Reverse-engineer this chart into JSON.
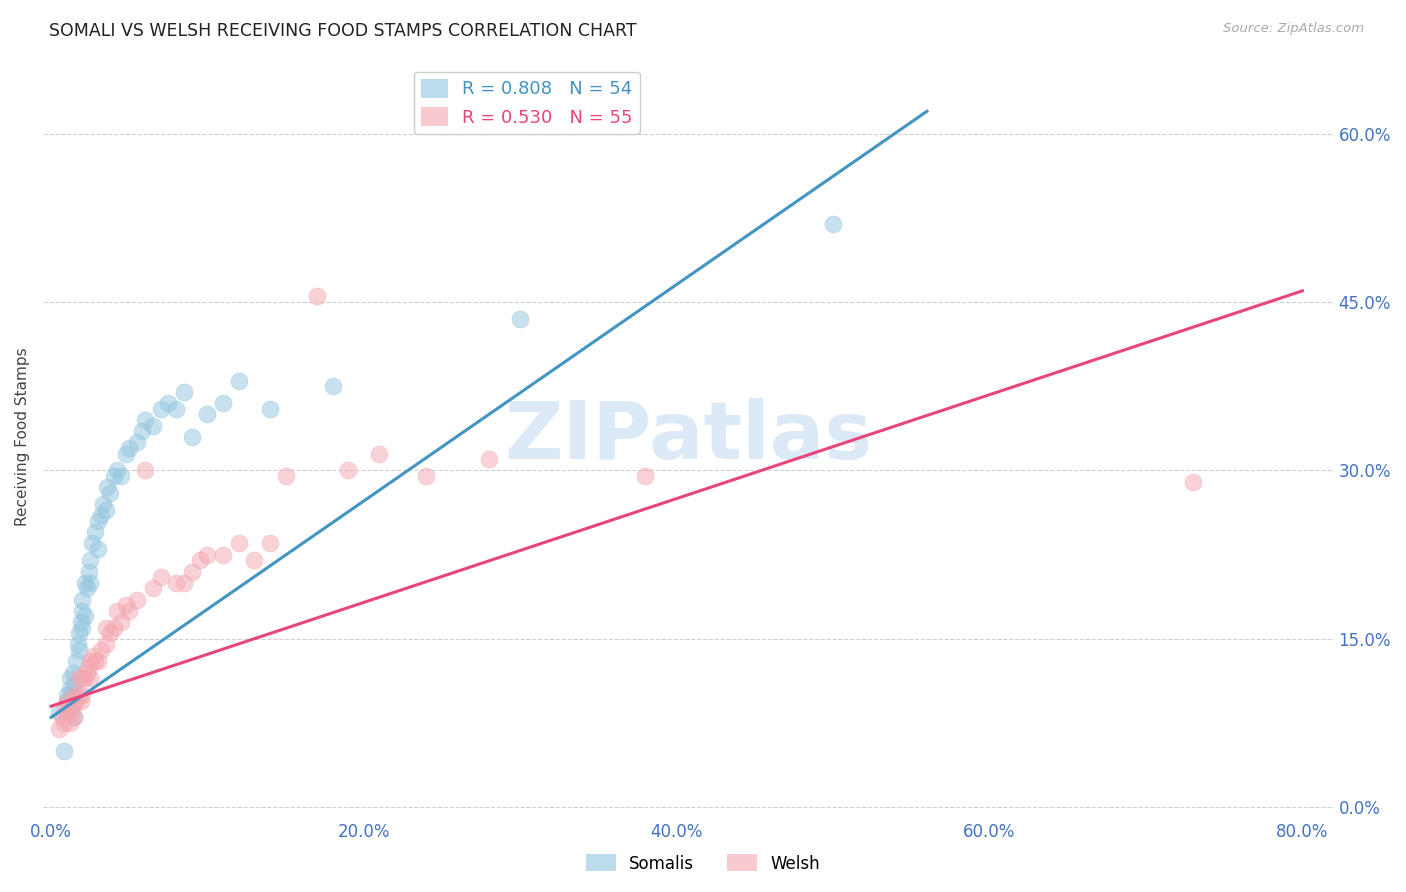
{
  "title": "SOMALI VS WELSH RECEIVING FOOD STAMPS CORRELATION CHART",
  "source": "Source: ZipAtlas.com",
  "ylabel": "Receiving Food Stamps",
  "xlabel_vals": [
    0.0,
    0.2,
    0.4,
    0.6,
    0.8
  ],
  "ylabel_vals": [
    0.0,
    0.15,
    0.3,
    0.45,
    0.6
  ],
  "xlim": [
    -0.005,
    0.82
  ],
  "ylim": [
    -0.01,
    0.67
  ],
  "somali_R": 0.808,
  "somali_N": 54,
  "welsh_R": 0.53,
  "welsh_N": 55,
  "somali_color": "#92c5de",
  "welsh_color": "#f4a6b0",
  "somali_line_color": "#4393c3",
  "welsh_line_color": "#e8457a",
  "title_color": "#222222",
  "tick_color": "#4472c4",
  "grid_color": "#d0d0d0",
  "watermark_text": "ZIPatlas",
  "watermark_color": "#dce9f7",
  "somali_line_x0": 0.0,
  "somali_line_y0": 0.08,
  "somali_line_x1": 0.56,
  "somali_line_y1": 0.62,
  "welsh_line_x0": 0.0,
  "welsh_line_y0": 0.09,
  "welsh_line_x1": 0.8,
  "welsh_line_y1": 0.46,
  "somali_x": [
    0.005,
    0.008,
    0.01,
    0.01,
    0.012,
    0.012,
    0.013,
    0.014,
    0.015,
    0.015,
    0.016,
    0.017,
    0.018,
    0.018,
    0.019,
    0.02,
    0.02,
    0.02,
    0.022,
    0.022,
    0.023,
    0.024,
    0.025,
    0.025,
    0.026,
    0.028,
    0.03,
    0.03,
    0.032,
    0.033,
    0.035,
    0.036,
    0.038,
    0.04,
    0.042,
    0.045,
    0.048,
    0.05,
    0.055,
    0.058,
    0.06,
    0.065,
    0.07,
    0.075,
    0.08,
    0.085,
    0.09,
    0.1,
    0.11,
    0.12,
    0.14,
    0.18,
    0.3,
    0.5
  ],
  "somali_y": [
    0.085,
    0.05,
    0.095,
    0.1,
    0.105,
    0.115,
    0.1,
    0.12,
    0.08,
    0.11,
    0.13,
    0.145,
    0.14,
    0.155,
    0.165,
    0.16,
    0.175,
    0.185,
    0.17,
    0.2,
    0.195,
    0.21,
    0.2,
    0.22,
    0.235,
    0.245,
    0.23,
    0.255,
    0.26,
    0.27,
    0.265,
    0.285,
    0.28,
    0.295,
    0.3,
    0.295,
    0.315,
    0.32,
    0.325,
    0.335,
    0.345,
    0.34,
    0.355,
    0.36,
    0.355,
    0.37,
    0.33,
    0.35,
    0.36,
    0.38,
    0.355,
    0.375,
    0.435,
    0.52
  ],
  "welsh_x": [
    0.005,
    0.007,
    0.008,
    0.009,
    0.01,
    0.011,
    0.012,
    0.013,
    0.014,
    0.015,
    0.015,
    0.016,
    0.018,
    0.018,
    0.019,
    0.02,
    0.02,
    0.022,
    0.023,
    0.024,
    0.025,
    0.025,
    0.027,
    0.028,
    0.03,
    0.032,
    0.035,
    0.035,
    0.038,
    0.04,
    0.042,
    0.045,
    0.048,
    0.05,
    0.055,
    0.06,
    0.065,
    0.07,
    0.08,
    0.085,
    0.09,
    0.095,
    0.1,
    0.11,
    0.12,
    0.13,
    0.14,
    0.15,
    0.17,
    0.19,
    0.21,
    0.24,
    0.28,
    0.38,
    0.73
  ],
  "welsh_y": [
    0.07,
    0.08,
    0.075,
    0.09,
    0.085,
    0.095,
    0.075,
    0.085,
    0.09,
    0.08,
    0.1,
    0.095,
    0.1,
    0.115,
    0.095,
    0.1,
    0.115,
    0.115,
    0.12,
    0.125,
    0.115,
    0.13,
    0.135,
    0.13,
    0.13,
    0.14,
    0.145,
    0.16,
    0.155,
    0.16,
    0.175,
    0.165,
    0.18,
    0.175,
    0.185,
    0.3,
    0.195,
    0.205,
    0.2,
    0.2,
    0.21,
    0.22,
    0.225,
    0.225,
    0.235,
    0.22,
    0.235,
    0.295,
    0.455,
    0.3,
    0.315,
    0.295,
    0.31,
    0.295,
    0.29
  ]
}
